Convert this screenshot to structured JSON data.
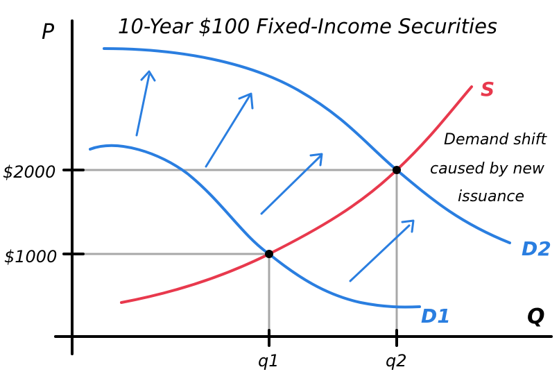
{
  "title": "10-Year $100 Fixed-Income Securities",
  "axes": {
    "y_label": "P",
    "x_label": "Q"
  },
  "price_ticks": [
    "$2000",
    "$1000"
  ],
  "quantity_ticks": [
    "q1",
    "q2"
  ],
  "curves": {
    "supply": "S",
    "demand_1": "D1",
    "demand_2": "D2"
  },
  "annotation": {
    "line1": "Demand shift",
    "line2": "caused by new",
    "line3": "issuance"
  },
  "colors": {
    "supply": "#e8394d",
    "demand": "#2a7ee0",
    "axis": "#000000",
    "guide": "#a8a8a8",
    "point": "#000000"
  }
}
